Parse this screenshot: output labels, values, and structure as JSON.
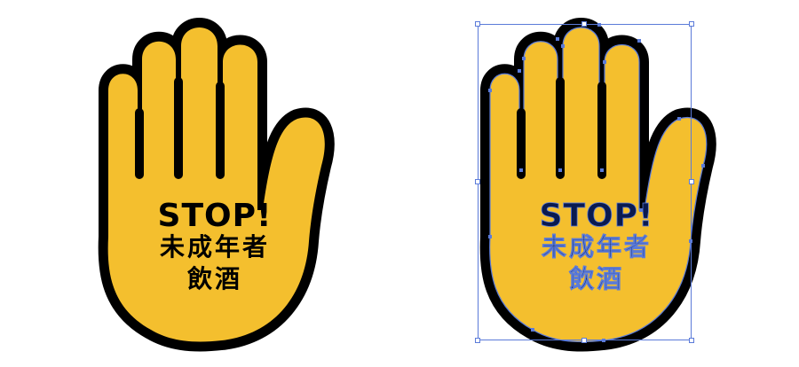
{
  "signs": [
    {
      "id": "normal",
      "stop_text": "STOP!",
      "line1": "未成年者",
      "line2": "飲酒",
      "fill_color": "#F4BF2E",
      "outline_color": "#000000",
      "text_color": "#000000"
    },
    {
      "id": "selected",
      "stop_text": "STOP!",
      "line1": "未成年者",
      "line2": "飲酒",
      "fill_color": "#F4BF2E",
      "outline_color": "#000000",
      "text_color": "#0a1a4f",
      "selection_color": "#5b7bd9"
    }
  ],
  "icons": {
    "hand": "raised-hand-stop-icon"
  }
}
